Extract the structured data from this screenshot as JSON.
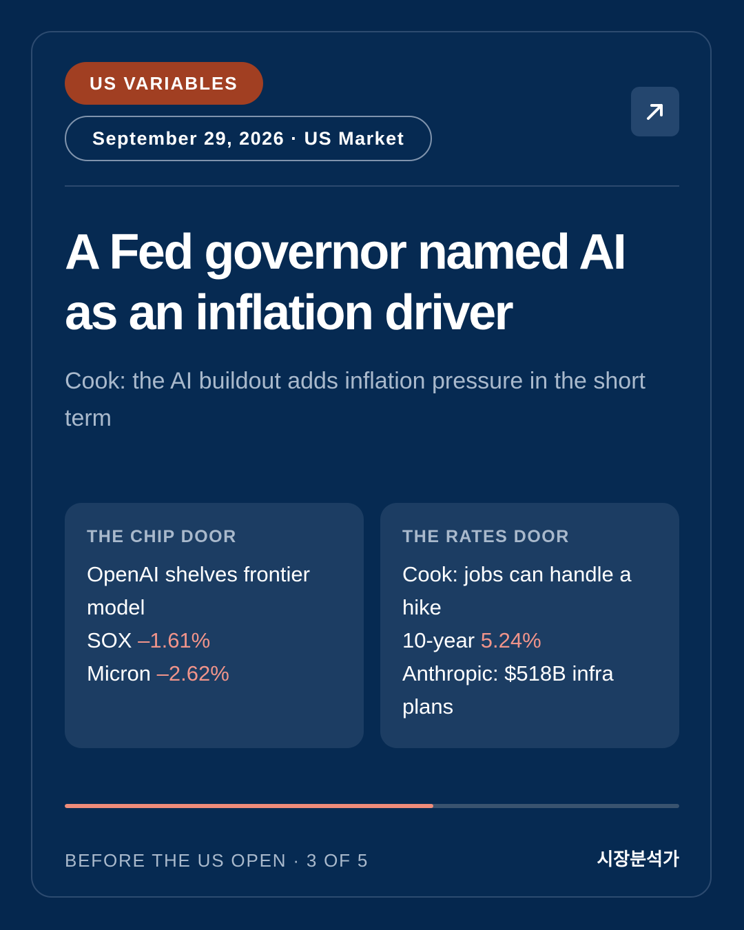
{
  "header": {
    "category_badge": "US VARIABLES",
    "dateline": "September 29, 2026 · US Market",
    "open_icon": "arrow-up-right-icon"
  },
  "article": {
    "headline": "A Fed governor named AI as an inflation driver",
    "subhead": "Cook: the AI buildout adds inflation pressure in the short term"
  },
  "doors": {
    "chip": {
      "title": "THE CHIP DOOR",
      "line1": "OpenAI shelves frontier model",
      "sox_label": "SOX",
      "sox_change": "–1.61%",
      "micron_label": "Micron",
      "micron_change": "–2.62%"
    },
    "rates": {
      "title": "THE RATES DOOR",
      "line1": "Cook: jobs can handle a hike",
      "tenyear_label": "10-year",
      "tenyear_value": "5.24%",
      "line3": "Anthropic: $518B infra plans"
    }
  },
  "progress": {
    "current": 3,
    "total": 5,
    "fill_fraction": 0.6
  },
  "footer": {
    "position_text": "BEFORE THE US OPEN · 3 OF 5",
    "brand": "시장분석가"
  },
  "colors": {
    "background": "#05274e",
    "badge": "#a13f22",
    "negative": "#f1948a",
    "progress_fill": "#ee8c7a"
  }
}
